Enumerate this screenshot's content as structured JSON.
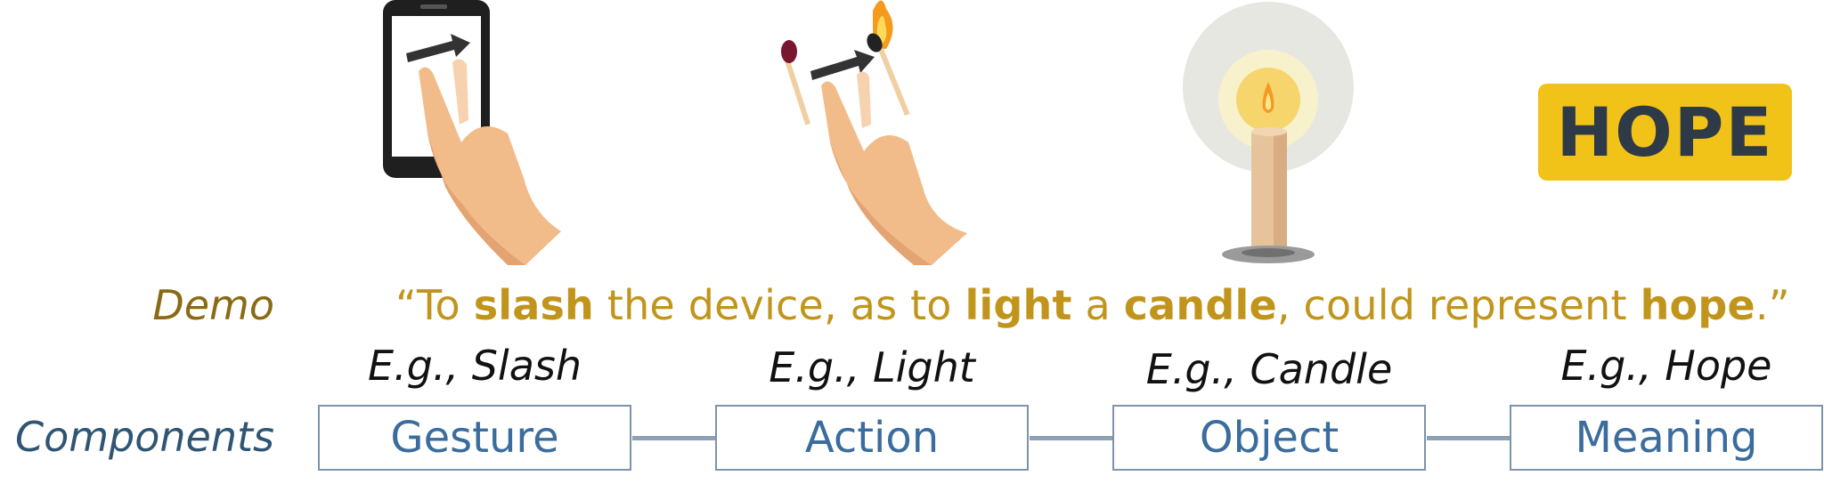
{
  "labels": {
    "demo": "Demo",
    "components": "Components"
  },
  "sentence": {
    "open_quote": "“To ",
    "w1": "slash",
    "t1": " the device, as to ",
    "w2": "light",
    "t2": " a ",
    "w3": "candle",
    "t3": ", could represent ",
    "w4": "hope",
    "t4": ".”"
  },
  "components": [
    {
      "name": "Gesture",
      "example": "E.g., Slash"
    },
    {
      "name": "Action",
      "example": "E.g., Light"
    },
    {
      "name": "Object",
      "example": "E.g., Candle"
    },
    {
      "name": "Meaning",
      "example": "E.g., Hope"
    }
  ],
  "badge": {
    "text": "HOPE"
  },
  "icons": [
    "phone-swipe-icon",
    "match-strike-icon",
    "candle-icon"
  ],
  "colors": {
    "demo_text": "#c1951c",
    "demo_label": "#8a6a14",
    "components_label": "#2f5573",
    "box_text": "#3a6d9d",
    "box_border": "#7d93ab",
    "badge_bg": "#f1c318",
    "badge_text": "#2e3a47",
    "skin": "#f2bc8a"
  }
}
